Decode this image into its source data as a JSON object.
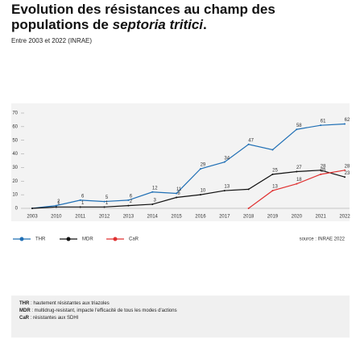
{
  "chart_data": {
    "type": "line",
    "title_parts": [
      "Evolution des résistances au champ des populations de ",
      "septoria tritici",
      "."
    ],
    "subtitle": "Entre 2003 et 2022 (INRAE)",
    "source": "source : INRAE 2022",
    "categories": [
      "2003",
      "2010",
      "2011",
      "2012",
      "2013",
      "2014",
      "2015",
      "2016",
      "2017",
      "2018",
      "2019",
      "2020",
      "2021",
      "2022"
    ],
    "series": [
      {
        "name": "THR",
        "color": "#1f6fb5",
        "values": [
          0,
          2,
          6,
          5,
          6,
          12,
          11,
          29,
          34,
          47,
          43,
          58,
          61,
          62
        ],
        "value_labels": [
          null,
          "2",
          "6",
          "5",
          "6",
          "12",
          "11",
          "29",
          "34",
          "47",
          null,
          "58",
          "61",
          "62"
        ]
      },
      {
        "name": "MDR",
        "color": "#111111",
        "values": [
          0,
          1,
          1,
          1,
          2,
          3,
          8,
          10,
          13,
          14,
          25,
          27,
          28,
          23
        ],
        "value_labels": [
          null,
          "1",
          "1",
          "1",
          "2",
          "3",
          "8",
          "10",
          "13",
          null,
          "25",
          "27",
          "28",
          "23"
        ]
      },
      {
        "name": "CaR",
        "color": "#e03030",
        "values": [
          null,
          null,
          null,
          null,
          null,
          null,
          null,
          null,
          null,
          0,
          13,
          18,
          25,
          28
        ],
        "value_labels": [
          null,
          null,
          null,
          null,
          null,
          null,
          null,
          null,
          null,
          null,
          "13",
          "18",
          "25",
          "28"
        ]
      }
    ],
    "ylim": [
      0,
      70
    ],
    "yticks": [
      0,
      10,
      20,
      30,
      40,
      50,
      60,
      70
    ],
    "notes": [
      {
        "term": "THR",
        "text": " : hautement résistantes aux triazoles"
      },
      {
        "term": "MDR",
        "text": " : multidrug-resistant, impacte l'efficacité de tous les modes d'actions"
      },
      {
        "term": "CaR",
        "text": " : résistantes aux SDHI"
      }
    ]
  }
}
